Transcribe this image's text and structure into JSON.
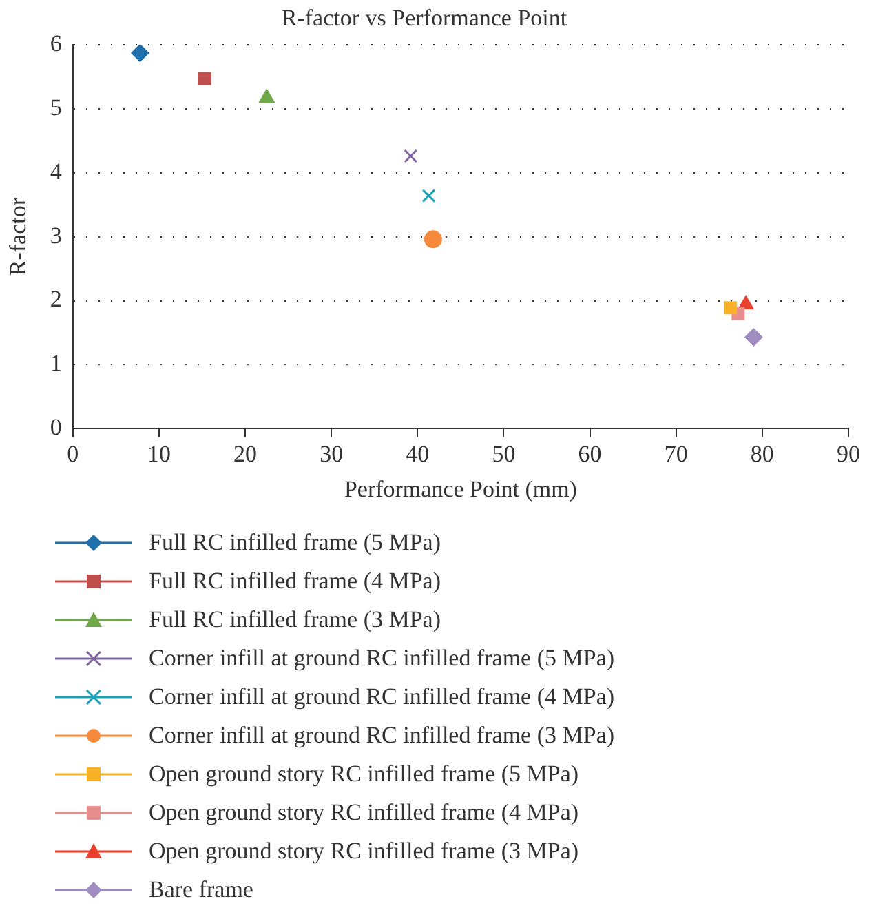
{
  "chart_data": {
    "type": "scatter",
    "title": "R-factor vs Performance Point",
    "xlabel": "Performance Point (mm)",
    "ylabel": "R-factor",
    "xlim": [
      0,
      90
    ],
    "xticks": [
      0,
      10,
      20,
      30,
      40,
      50,
      60,
      70,
      80,
      90
    ],
    "ylim": [
      0,
      6
    ],
    "yticks": [
      0,
      1,
      2,
      3,
      4,
      5,
      6
    ],
    "grid": "y",
    "legend": "bottom",
    "series": [
      {
        "name": "Full RC infilled frame (5 MPa)",
        "color": "#1f6fad",
        "marker": "diamond",
        "x": [
          7.8
        ],
        "values": [
          5.87
        ]
      },
      {
        "name": "Full RC infilled frame (4 MPa)",
        "color": "#c0504d",
        "marker": "square",
        "x": [
          15.3
        ],
        "values": [
          5.47
        ]
      },
      {
        "name": "Full RC infilled frame (3 MPa)",
        "color": "#70a84a",
        "marker": "triangle",
        "x": [
          22.5
        ],
        "values": [
          5.17
        ]
      },
      {
        "name": "Corner infill at ground RC infilled frame (5 MPa)",
        "color": "#8064a2",
        "marker": "cross",
        "x": [
          39.2
        ],
        "values": [
          4.26
        ]
      },
      {
        "name": "Corner infill at ground RC infilled frame (4 MPa)",
        "color": "#1aa3b8",
        "marker": "cross",
        "x": [
          41.3
        ],
        "values": [
          3.64
        ]
      },
      {
        "name": "Corner infill at ground RC infilled frame (3 MPa)",
        "color": "#f58a3c",
        "marker": "circle",
        "x": [
          41.8
        ],
        "values": [
          2.96
        ]
      },
      {
        "name": "Open ground story RC infilled frame (5 MPa)",
        "color": "#f7b22a",
        "marker": "square",
        "x": [
          76.3
        ],
        "values": [
          1.89
        ]
      },
      {
        "name": "Open ground story RC infilled frame (4 MPa)",
        "color": "#e88e8e",
        "marker": "square",
        "x": [
          77.2
        ],
        "values": [
          1.8
        ]
      },
      {
        "name": "Open ground story RC infilled frame (3 MPa)",
        "color": "#e8412c",
        "marker": "triangle",
        "x": [
          78.1
        ],
        "values": [
          1.94
        ]
      },
      {
        "name": "Bare frame",
        "color": "#a08cc0",
        "marker": "diamond",
        "x": [
          79.0
        ],
        "values": [
          1.43
        ]
      }
    ]
  }
}
